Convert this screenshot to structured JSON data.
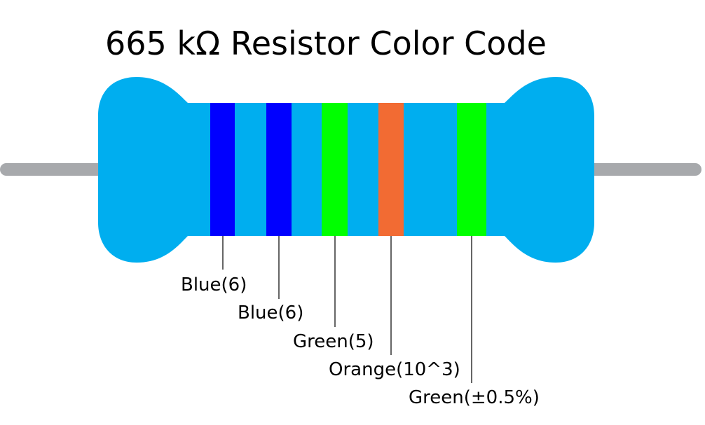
{
  "title": "665 kΩ Resistor Color Code",
  "bands": [
    {
      "label": "Blue(6)"
    },
    {
      "label": "Blue(6)"
    },
    {
      "label": "Green(5)"
    },
    {
      "label": "Orange(10^3)"
    },
    {
      "label": "Green(±0.5%)"
    }
  ]
}
